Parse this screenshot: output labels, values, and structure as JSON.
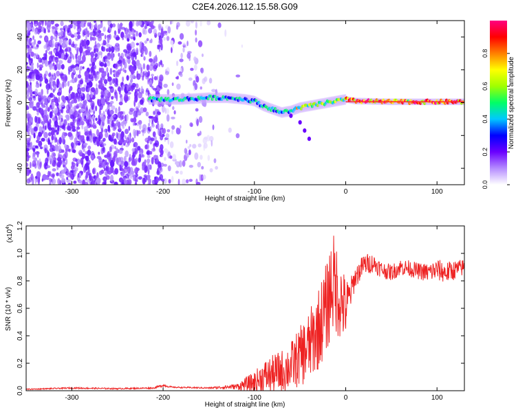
{
  "title": "C2E4.2026.112.15.58.G09",
  "chart_data": [
    {
      "type": "heatmap",
      "xlabel": "Height of straight line (km)",
      "ylabel": "Frequency (Hz)",
      "xlim": [
        -350,
        130
      ],
      "ylim": [
        -50,
        50
      ],
      "xticks": [
        -300,
        -200,
        -100,
        0,
        100
      ],
      "yticks": [
        -40,
        -20,
        0,
        20,
        40
      ],
      "colorbar": {
        "label": "Normalized spectral amplitude",
        "range": [
          0,
          1
        ],
        "ticks": [
          "0.0",
          "0.2",
          "0.4",
          "0.6",
          "0.8"
        ],
        "tick_values": [
          0.0,
          0.2,
          0.4,
          0.6,
          0.8
        ],
        "colors": [
          "#ffffff",
          "#b58cff",
          "#6a00ff",
          "#0000ff",
          "#00c8ff",
          "#00ff66",
          "#a0ff00",
          "#ffff00",
          "#ff8000",
          "#ff0000",
          "#ff0080"
        ]
      },
      "ridge": {
        "x": [
          -210,
          -180,
          -150,
          -130,
          -110,
          -100,
          -90,
          -80,
          -70,
          -60,
          -50,
          -40,
          -30,
          -20,
          -10,
          0,
          10,
          50,
          100,
          130
        ],
        "y": [
          2,
          2,
          3,
          3,
          2,
          1,
          -2,
          -4,
          -6,
          -5,
          -3,
          -2,
          -1,
          0,
          1,
          2,
          1,
          0.5,
          0.5,
          0.5
        ]
      },
      "branch": {
        "x": [
          -60,
          -50,
          -45,
          -40
        ],
        "y": [
          -8,
          -12,
          -17,
          -22
        ]
      }
    },
    {
      "type": "line",
      "xlabel": "Height of straight line (km)",
      "ylabel": "SNR (10 * v/v)",
      "y_multiplier": "(x10",
      "y_multiplier_exp": "4",
      "y_multiplier_close": ")",
      "xlim": [
        -350,
        130
      ],
      "ylim": [
        0,
        1.2
      ],
      "xticks": [
        -300,
        -200,
        -100,
        0,
        100
      ],
      "yticks": [
        0.0,
        0.2,
        0.4,
        0.6,
        0.8,
        1.0,
        1.2
      ],
      "yticklabels": [
        "0.0",
        "0.2",
        "0.4",
        "0.6",
        "0.8",
        "1.0",
        "1.2"
      ],
      "series": [
        {
          "color": "#ee2222",
          "x": [
            -350,
            -300,
            -250,
            -210,
            -200,
            -190,
            -150,
            -120,
            -100,
            -90,
            -80,
            -70,
            -60,
            -50,
            -40,
            -30,
            -20,
            -15,
            -10,
            -5,
            0,
            5,
            10,
            20,
            30,
            40,
            50,
            60,
            70,
            80,
            90,
            100,
            110,
            120,
            130
          ],
          "y": [
            0.01,
            0.02,
            0.015,
            0.02,
            0.04,
            0.025,
            0.02,
            0.03,
            0.06,
            0.1,
            0.12,
            0.14,
            0.18,
            0.25,
            0.32,
            0.45,
            0.62,
            0.8,
            0.74,
            0.65,
            0.6,
            0.7,
            0.82,
            0.92,
            0.93,
            0.88,
            0.86,
            0.9,
            0.89,
            0.87,
            0.86,
            0.88,
            0.86,
            0.88,
            0.9
          ],
          "noise_envelope": [
            0.004,
            0.005,
            0.005,
            0.005,
            0.01,
            0.005,
            0.005,
            0.02,
            0.08,
            0.12,
            0.14,
            0.16,
            0.18,
            0.22,
            0.26,
            0.3,
            0.34,
            0.38,
            0.34,
            0.3,
            0.22,
            0.12,
            0.08,
            0.08,
            0.07,
            0.06,
            0.06,
            0.06,
            0.06,
            0.06,
            0.07,
            0.08,
            0.08,
            0.07,
            0.06
          ]
        }
      ]
    }
  ]
}
